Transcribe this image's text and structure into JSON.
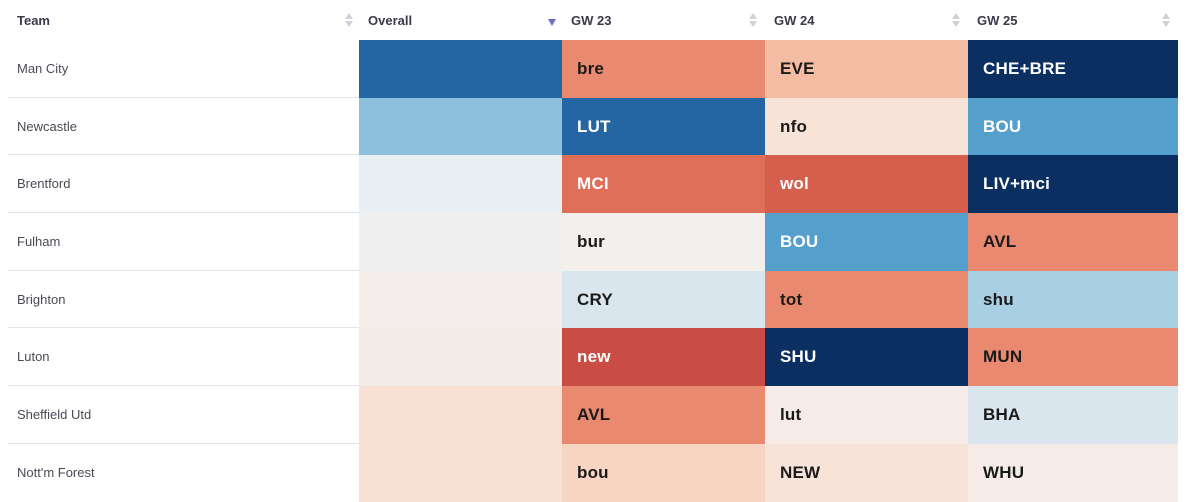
{
  "header": {
    "team": "Team",
    "overall": "Overall",
    "gw23": "GW 23",
    "gw24": "GW 24",
    "gw25": "GW 25",
    "sort_icon": "sort-updown-icon",
    "active_sort_icon": "sort-desc-icon",
    "active_sort_color": "#6a6fc9"
  },
  "rows": [
    {
      "team": "Man City",
      "overall_color": "#2465a4",
      "fixtures": [
        {
          "label": "bre",
          "bg": "#e98a70",
          "fg": "#1a1a1a"
        },
        {
          "label": "EVE",
          "bg": "#f4bca3",
          "fg": "#1a1a1a"
        },
        {
          "label": "CHE+BRE",
          "bg": "#0a2f60",
          "fg": "#ffffff"
        }
      ]
    },
    {
      "team": "Newcastle",
      "overall_color": "#8cc0dd",
      "fixtures": [
        {
          "label": "LUT",
          "bg": "#2465a4",
          "fg": "#ffffff"
        },
        {
          "label": "nfo",
          "bg": "#f8e3d9",
          "fg": "#1a1a1a"
        },
        {
          "label": "BOU",
          "bg": "#559fcc",
          "fg": "#ffffff"
        }
      ]
    },
    {
      "team": "Brentford",
      "overall_color": "#e8eef2",
      "fixtures": [
        {
          "label": "MCI",
          "bg": "#e06f59",
          "fg": "#ffffff"
        },
        {
          "label": "wol",
          "bg": "#d65e4d",
          "fg": "#ffffff"
        },
        {
          "label": "LIV+mci",
          "bg": "#0a2f60",
          "fg": "#ffffff"
        }
      ]
    },
    {
      "team": "Fulham",
      "overall_color": "#f0efef",
      "fixtures": [
        {
          "label": "bur",
          "bg": "#f3efed",
          "fg": "#1a1a1a"
        },
        {
          "label": "BOU",
          "bg": "#559fcc",
          "fg": "#ffffff"
        },
        {
          "label": "AVL",
          "bg": "#e98a70",
          "fg": "#1a1a1a"
        }
      ]
    },
    {
      "team": "Brighton",
      "overall_color": "#f3eeeb",
      "fixtures": [
        {
          "label": "CRY",
          "bg": "#dae6ed",
          "fg": "#1a1a1a"
        },
        {
          "label": "tot",
          "bg": "#e98a70",
          "fg": "#1a1a1a"
        },
        {
          "label": "shu",
          "bg": "#a9cfe3",
          "fg": "#1a1a1a"
        }
      ]
    },
    {
      "team": "Luton",
      "overall_color": "#f2ece9",
      "fixtures": [
        {
          "label": "new",
          "bg": "#c94c45",
          "fg": "#ffffff"
        },
        {
          "label": "SHU",
          "bg": "#0a2f60",
          "fg": "#ffffff"
        },
        {
          "label": "MUN",
          "bg": "#e98a70",
          "fg": "#1a1a1a"
        }
      ]
    },
    {
      "team": "Sheffield Utd",
      "overall_color": "#f9e0d4",
      "fixtures": [
        {
          "label": "AVL",
          "bg": "#e98a70",
          "fg": "#1a1a1a"
        },
        {
          "label": "lut",
          "bg": "#f6ebe6",
          "fg": "#1a1a1a"
        },
        {
          "label": "BHA",
          "bg": "#dae6ed",
          "fg": "#1a1a1a"
        }
      ]
    },
    {
      "team": "Nott'm Forest",
      "overall_color": "#f9e0d4",
      "fixtures": [
        {
          "label": "bou",
          "bg": "#f8d4c2",
          "fg": "#1a1a1a"
        },
        {
          "label": "NEW",
          "bg": "#f8e3d9",
          "fg": "#1a1a1a"
        },
        {
          "label": "WHU",
          "bg": "#f6ebe6",
          "fg": "#1a1a1a"
        }
      ]
    }
  ]
}
